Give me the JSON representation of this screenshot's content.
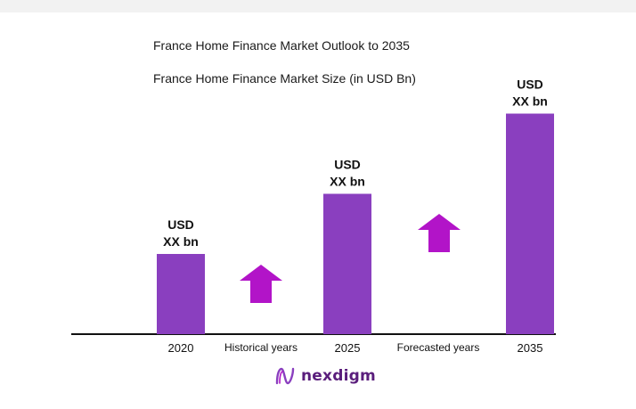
{
  "title": "France Home Finance Market Outlook to 2035",
  "subtitle": "France Home Finance Market Size (in USD Bn)",
  "brand": "nexdigm",
  "colors": {
    "bar": "#8a3fbf",
    "arrow": "#b214c8",
    "axis": "#111111",
    "brand": "#5a1e7c"
  },
  "chart_data": {
    "type": "bar",
    "categories": [
      "2020",
      "2025",
      "2035"
    ],
    "values": [
      1.0,
      1.75,
      2.75
    ],
    "data_labels": [
      [
        "USD",
        "XX bn"
      ],
      [
        "USD",
        "XX bn"
      ],
      [
        "USD",
        "XX bn"
      ]
    ],
    "period_labels": [
      "Historical years",
      "Forecasted years"
    ],
    "period_arrows": [
      "up-arrow-icon",
      "up-arrow-icon"
    ],
    "title": "France Home Finance Market Size (in USD Bn)",
    "xlabel": "",
    "ylabel": "",
    "grid": false,
    "legend": "none"
  }
}
